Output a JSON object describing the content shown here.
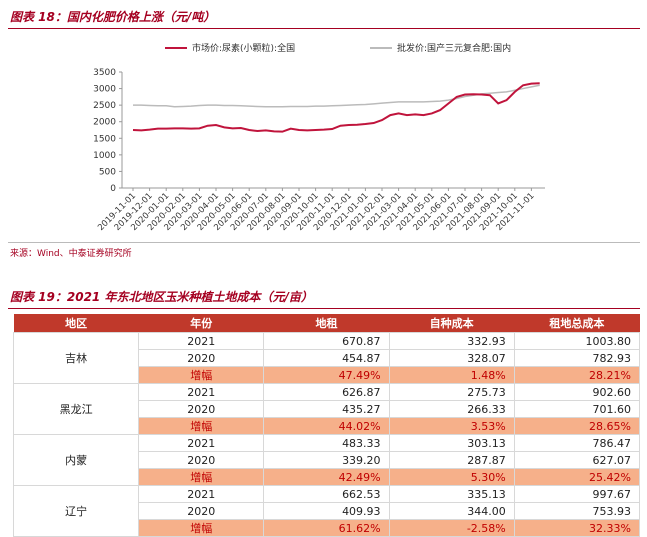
{
  "figure18": {
    "title": "图表 18：国内化肥价格上涨（元/吨）",
    "source": "来源：Wind、中泰证券研究所"
  },
  "chart_data": {
    "type": "line",
    "categories": [
      "2019-11-01",
      null,
      "2019-12-01",
      null,
      "2020-01-01",
      null,
      "2020-02-01",
      null,
      "2020-03-01",
      null,
      "2020-04-01",
      null,
      "2020-05-01",
      null,
      "2020-06-01",
      null,
      "2020-07-01",
      null,
      "2020-08-01",
      null,
      "2020-09-01",
      null,
      "2020-10-01",
      null,
      "2020-11-01",
      null,
      "2020-12-01",
      null,
      "2021-01-01",
      null,
      "2021-02-01",
      null,
      "2021-03-01",
      null,
      "2021-04-01",
      null,
      "2021-05-01",
      null,
      "2021-06-01",
      null,
      "2021-07-01",
      null,
      "2021-08-01",
      null,
      "2021-09-01",
      null,
      "2021-10-01",
      null,
      "2021-11-01",
      null
    ],
    "series": [
      {
        "name": "市场价:尿素(小颗粒):全国",
        "color": "#c0143c",
        "values": [
          1750,
          1740,
          1760,
          1790,
          1790,
          1800,
          1800,
          1790,
          1800,
          1880,
          1900,
          1830,
          1800,
          1810,
          1750,
          1720,
          1740,
          1710,
          1700,
          1790,
          1750,
          1740,
          1750,
          1760,
          1780,
          1880,
          1900,
          1910,
          1930,
          1960,
          2050,
          2200,
          2250,
          2200,
          2220,
          2200,
          2250,
          2350,
          2550,
          2750,
          2820,
          2830,
          2820,
          2800,
          2550,
          2650,
          2900,
          3100,
          3150,
          3160
        ]
      },
      {
        "name": "批发价:国产三元复合肥:国内",
        "color": "#bbbbbb",
        "values": [
          2500,
          2500,
          2490,
          2480,
          2480,
          2450,
          2460,
          2470,
          2490,
          2500,
          2500,
          2490,
          2490,
          2480,
          2470,
          2460,
          2450,
          2450,
          2450,
          2460,
          2460,
          2460,
          2470,
          2470,
          2480,
          2490,
          2500,
          2510,
          2520,
          2540,
          2560,
          2580,
          2600,
          2600,
          2600,
          2600,
          2610,
          2620,
          2650,
          2700,
          2760,
          2800,
          2840,
          2860,
          2880,
          2900,
          2950,
          3000,
          3050,
          3100
        ]
      }
    ],
    "ylim": [
      0,
      3500
    ],
    "yticks": [
      0,
      500,
      1000,
      1500,
      2000,
      2500,
      3000,
      3500
    ],
    "legend": "top"
  },
  "figure19": {
    "title": "图表 19：2021 年东北地区玉米种植土地成本（元/亩）",
    "table": {
      "header": [
        "地区",
        "年份",
        "地租",
        "自种成本",
        "租地总成本"
      ],
      "regions": [
        {
          "name": "吉林",
          "rows": [
            [
              "2021",
              "670.87",
              "332.93",
              "1003.80"
            ],
            [
              "2020",
              "454.87",
              "328.07",
              "782.93"
            ],
            [
              "增幅",
              "47.49%",
              "1.48%",
              "28.21%"
            ]
          ]
        },
        {
          "name": "黑龙江",
          "rows": [
            [
              "2021",
              "626.87",
              "275.73",
              "902.60"
            ],
            [
              "2020",
              "435.27",
              "266.33",
              "701.60"
            ],
            [
              "增幅",
              "44.02%",
              "3.53%",
              "28.65%"
            ]
          ]
        },
        {
          "name": "内蒙",
          "rows": [
            [
              "2021",
              "483.33",
              "303.13",
              "786.47"
            ],
            [
              "2020",
              "339.20",
              "287.87",
              "627.07"
            ],
            [
              "增幅",
              "42.49%",
              "5.30%",
              "25.42%"
            ]
          ]
        },
        {
          "name": "辽宁",
          "rows": [
            [
              "2021",
              "662.53",
              "335.13",
              "997.67"
            ],
            [
              "2020",
              "409.93",
              "344.00",
              "753.93"
            ],
            [
              "增幅",
              "61.62%",
              "-2.58%",
              "32.33%"
            ]
          ]
        }
      ]
    }
  }
}
